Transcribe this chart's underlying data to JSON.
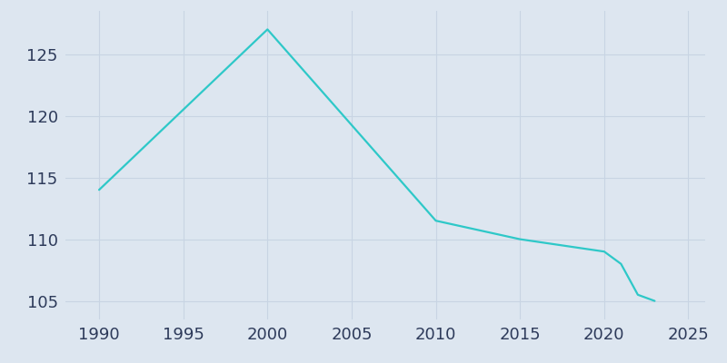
{
  "years": [
    1990,
    2000,
    2010,
    2015,
    2020,
    2021,
    2022,
    2023
  ],
  "population": [
    114,
    127,
    111.5,
    110,
    109,
    108,
    105.5,
    105
  ],
  "line_color": "#2ec8c8",
  "bg_color": "#dde6f0",
  "plot_bg_color": "#dde6f0",
  "grid_color": "#c8d4e3",
  "tick_color": "#2d3a5a",
  "xlim": [
    1988,
    2026
  ],
  "ylim": [
    103.5,
    128.5
  ],
  "xticks": [
    1990,
    1995,
    2000,
    2005,
    2010,
    2015,
    2020,
    2025
  ],
  "yticks": [
    105,
    110,
    115,
    120,
    125
  ],
  "line_width": 1.6,
  "tick_fontsize": 13
}
